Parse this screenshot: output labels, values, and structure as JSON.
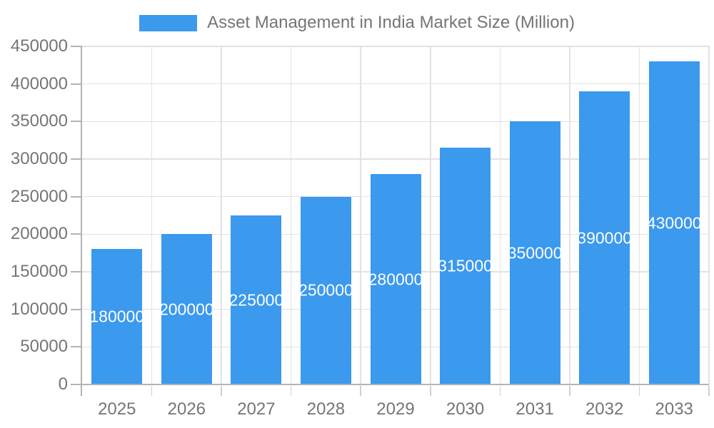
{
  "chart_data": {
    "type": "bar",
    "legend_label": "Asset Management in India Market Size (Million)",
    "legend_position": "top",
    "categories": [
      "2025",
      "2026",
      "2027",
      "2028",
      "2029",
      "2030",
      "2031",
      "2032",
      "2033"
    ],
    "values": [
      180000,
      200000,
      225000,
      250000,
      280000,
      315000,
      350000,
      390000,
      430000
    ],
    "y_ticks": [
      0,
      50000,
      100000,
      150000,
      200000,
      250000,
      300000,
      350000,
      400000,
      450000
    ],
    "ylim": [
      0,
      450000
    ],
    "grid": true,
    "colors": {
      "bar": "#3B99EE",
      "bar_label_text": "#ffffff",
      "axis_text": "#757575",
      "grid_line": "#E2E2E2",
      "axis_line": "#B3B3B3",
      "tick_line": "#CFCFCF",
      "background": "#ffffff"
    }
  }
}
